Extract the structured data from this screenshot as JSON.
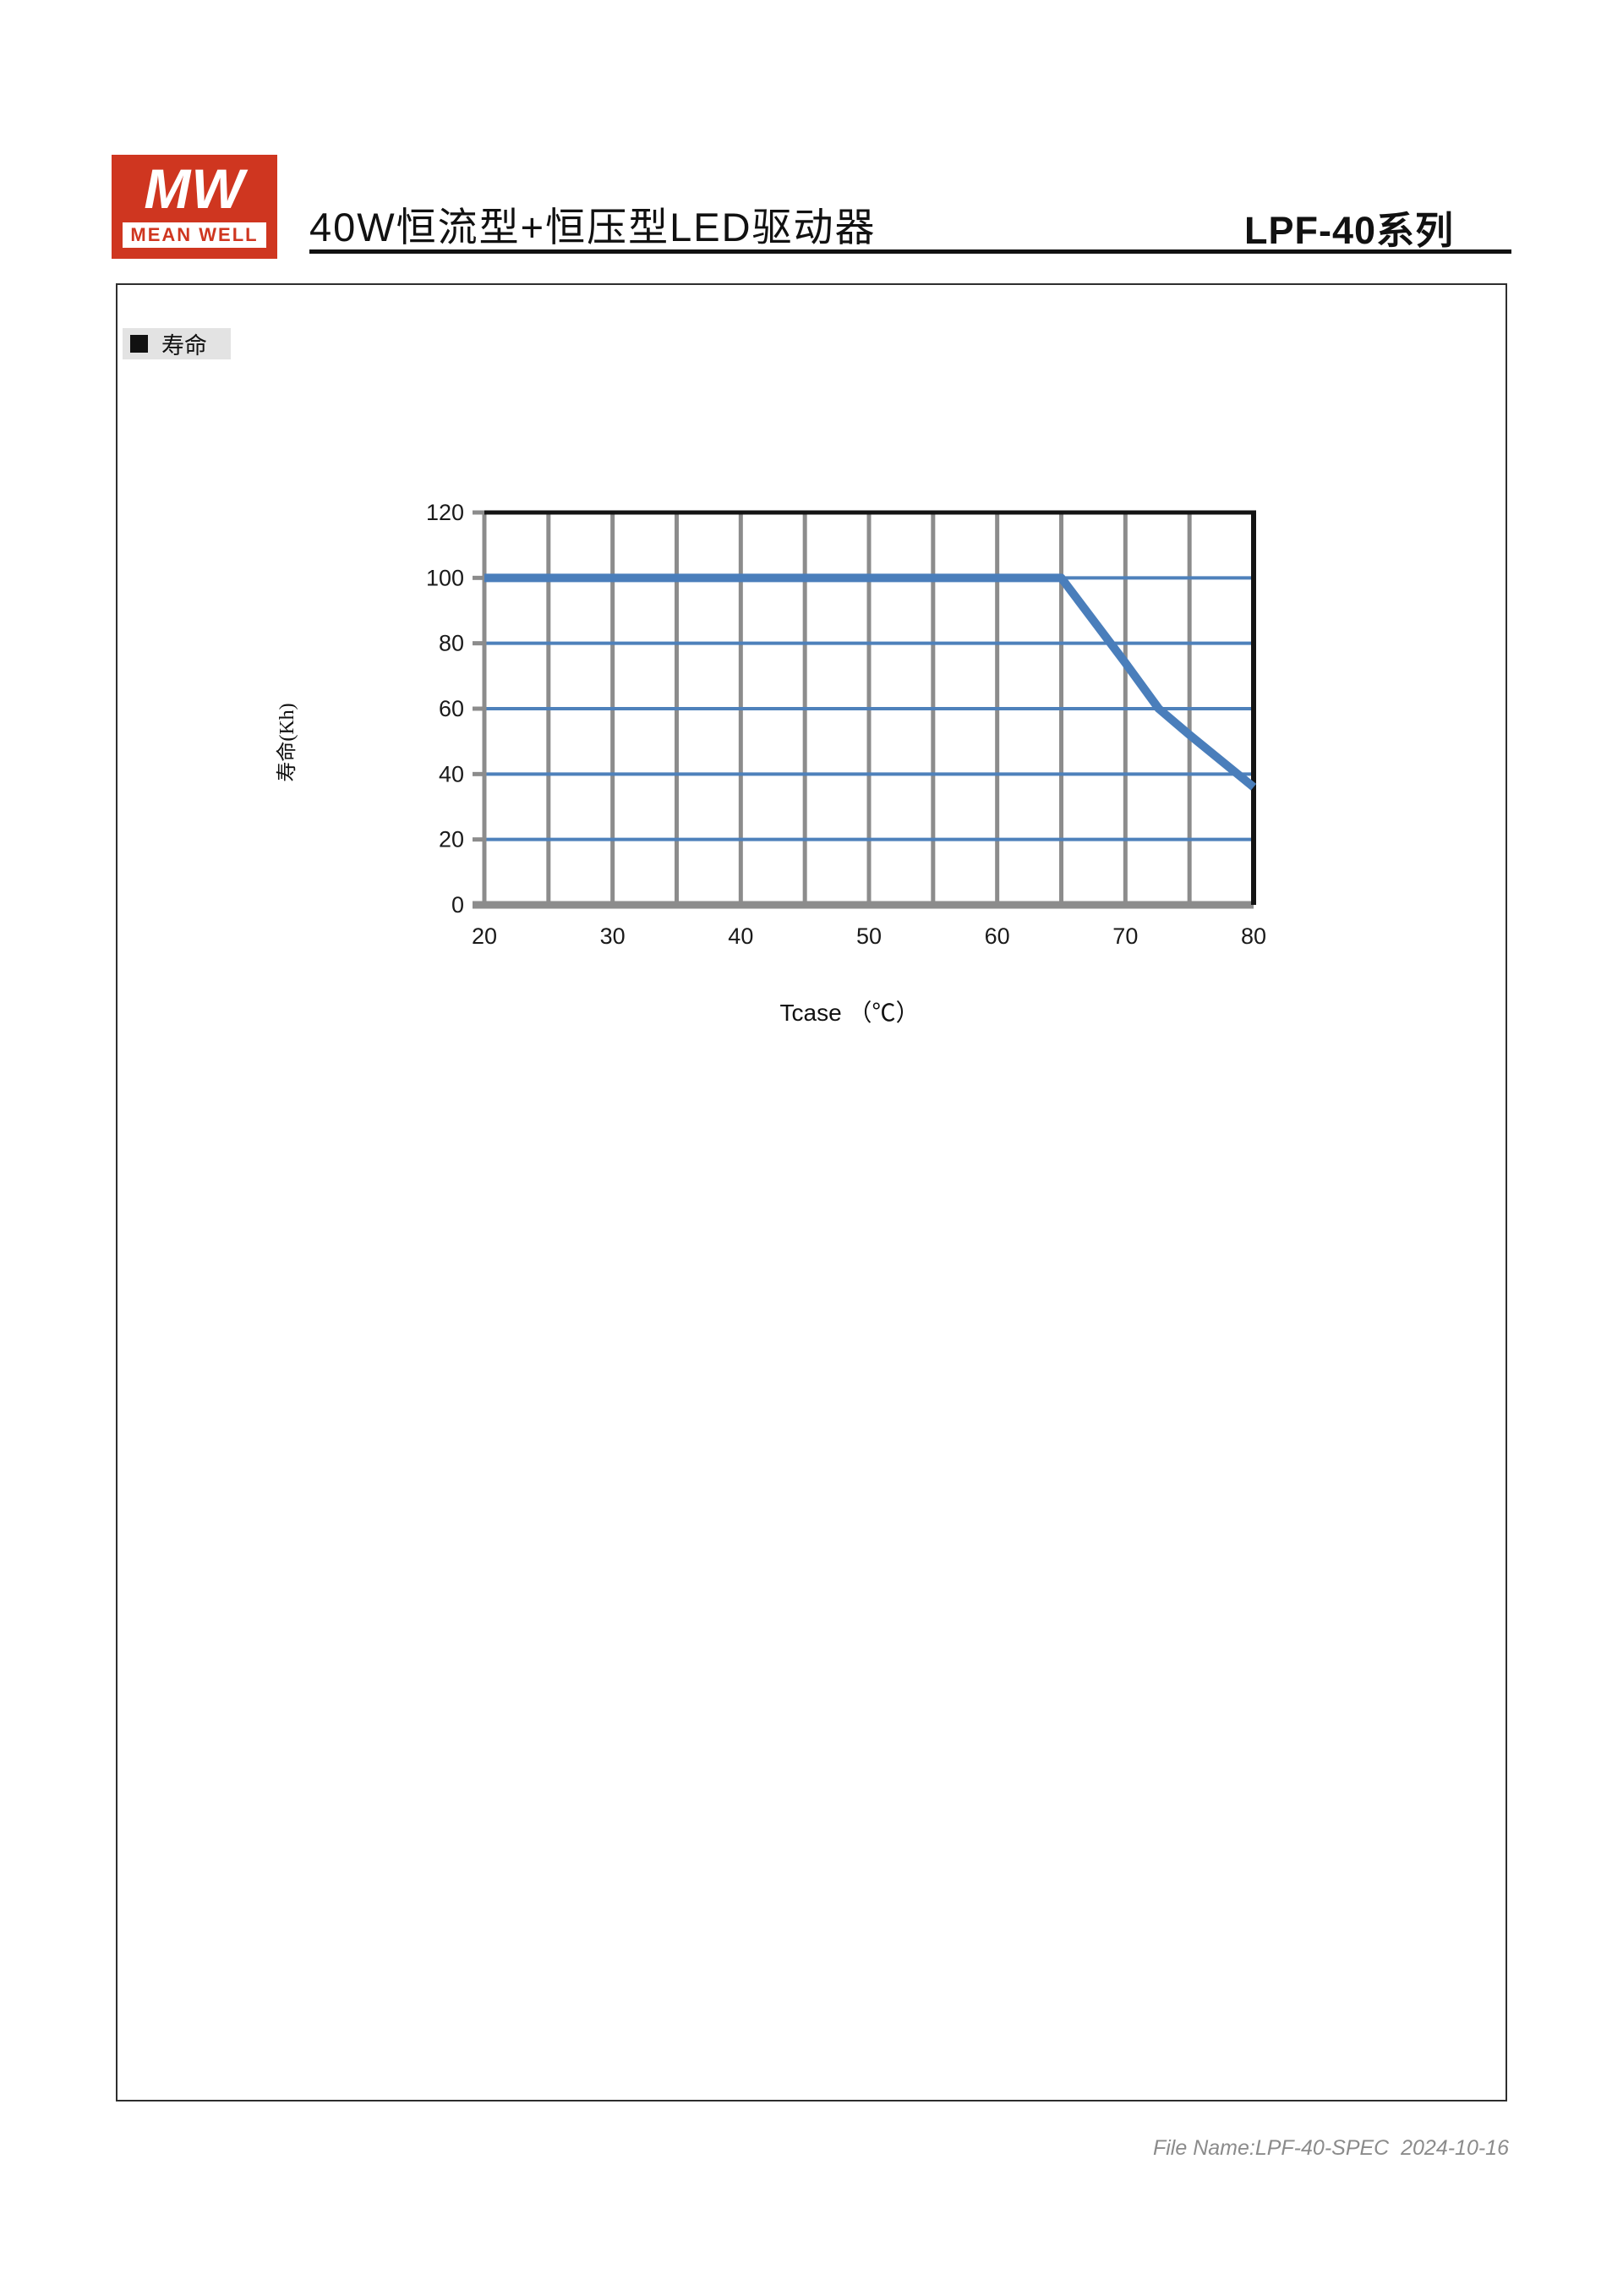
{
  "header": {
    "logo": {
      "monogram": "MW",
      "brand": "MEAN WELL"
    },
    "title": "40W恒流型+恒压型LED驱动器",
    "series": "LPF-40系列"
  },
  "section": {
    "label": "寿命"
  },
  "chart_data": {
    "type": "line",
    "title": "",
    "xlabel": "Tcase （℃）",
    "ylabel": "寿命(Kh)",
    "x_ticks": [
      20,
      30,
      40,
      50,
      60,
      70,
      80
    ],
    "y_ticks": [
      0,
      20,
      40,
      60,
      80,
      100,
      120
    ],
    "xlim": [
      20,
      80
    ],
    "ylim": [
      0,
      120
    ],
    "x_minor_step": 5,
    "grid": true,
    "legend_position": "none",
    "series": [
      {
        "name": "寿命",
        "points": [
          [
            20,
            100
          ],
          [
            65,
            100
          ],
          [
            70,
            74
          ],
          [
            72.6,
            60
          ],
          [
            75,
            52
          ],
          [
            80,
            36
          ]
        ]
      }
    ]
  },
  "footer": {
    "file_info": "File Name:LPF-40-SPEC  2024-10-16"
  },
  "colors": {
    "brand_red": "#cf3620",
    "line_blue": "#4a7ebb",
    "grid_blue": "#4e81bb",
    "grid_gray": "#8c8c8c",
    "border_black": "#141414",
    "label_bg": "#e3e3e3",
    "footer_gray": "#8b8b8b"
  }
}
